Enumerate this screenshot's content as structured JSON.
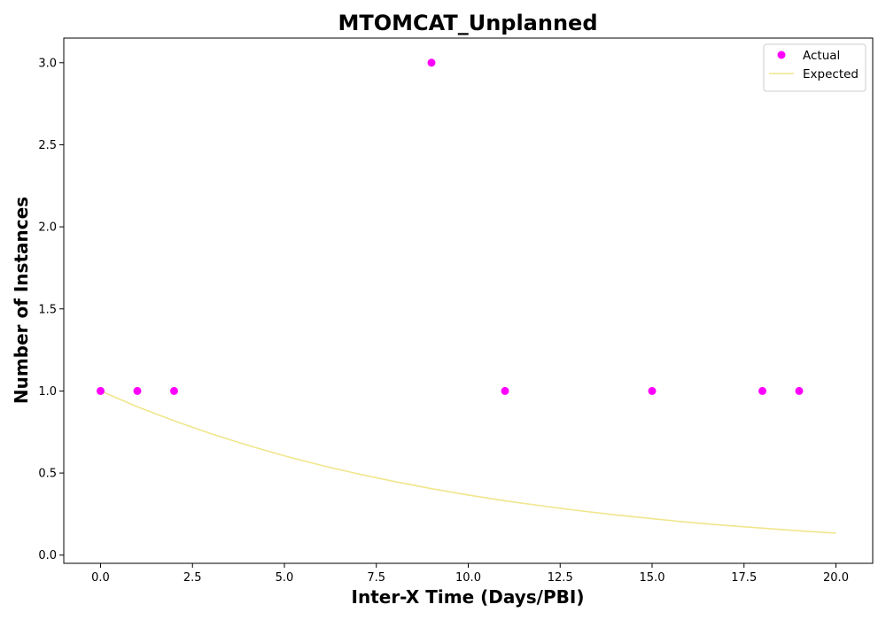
{
  "chart_data": {
    "type": "scatter",
    "title": "MTOMCAT_Unplanned",
    "xlabel": "Inter-X Time (Days/PBI)",
    "ylabel": "Number of Instances",
    "xlim": [
      -1.0,
      21.0
    ],
    "ylim": [
      -0.05,
      3.15
    ],
    "x_ticks": [
      0.0,
      2.5,
      5.0,
      7.5,
      10.0,
      12.5,
      15.0,
      17.5,
      20.0
    ],
    "x_tick_labels": [
      "0.0",
      "2.5",
      "5.0",
      "7.5",
      "10.0",
      "12.5",
      "15.0",
      "17.5",
      "20.0"
    ],
    "y_ticks": [
      0.0,
      0.5,
      1.0,
      1.5,
      2.0,
      2.5,
      3.0
    ],
    "y_tick_labels": [
      "0.0",
      "0.5",
      "1.0",
      "1.5",
      "2.0",
      "2.5",
      "3.0"
    ],
    "grid": false,
    "legend_position": "top-right",
    "series": [
      {
        "name": "Actual",
        "kind": "scatter",
        "color": "#ff00ff",
        "points": [
          {
            "x": 0,
            "y": 1
          },
          {
            "x": 1,
            "y": 1
          },
          {
            "x": 2,
            "y": 1
          },
          {
            "x": 9,
            "y": 3
          },
          {
            "x": 11,
            "y": 1
          },
          {
            "x": 15,
            "y": 1
          },
          {
            "x": 18,
            "y": 1
          },
          {
            "x": 19,
            "y": 1
          }
        ]
      },
      {
        "name": "Expected",
        "kind": "line",
        "color": "#f0e68c",
        "points": [
          {
            "x": 0,
            "y": 1.0
          },
          {
            "x": 1,
            "y": 0.904
          },
          {
            "x": 2,
            "y": 0.818
          },
          {
            "x": 3,
            "y": 0.74
          },
          {
            "x": 4,
            "y": 0.669
          },
          {
            "x": 5,
            "y": 0.605
          },
          {
            "x": 6,
            "y": 0.547
          },
          {
            "x": 7,
            "y": 0.495
          },
          {
            "x": 8,
            "y": 0.448
          },
          {
            "x": 9,
            "y": 0.405
          },
          {
            "x": 10,
            "y": 0.366
          },
          {
            "x": 11,
            "y": 0.331
          },
          {
            "x": 12,
            "y": 0.3
          },
          {
            "x": 13,
            "y": 0.271
          },
          {
            "x": 14,
            "y": 0.245
          },
          {
            "x": 15,
            "y": 0.222
          },
          {
            "x": 16,
            "y": 0.2
          },
          {
            "x": 17,
            "y": 0.181
          },
          {
            "x": 18,
            "y": 0.164
          },
          {
            "x": 19,
            "y": 0.148
          },
          {
            "x": 20,
            "y": 0.134
          }
        ]
      }
    ]
  }
}
